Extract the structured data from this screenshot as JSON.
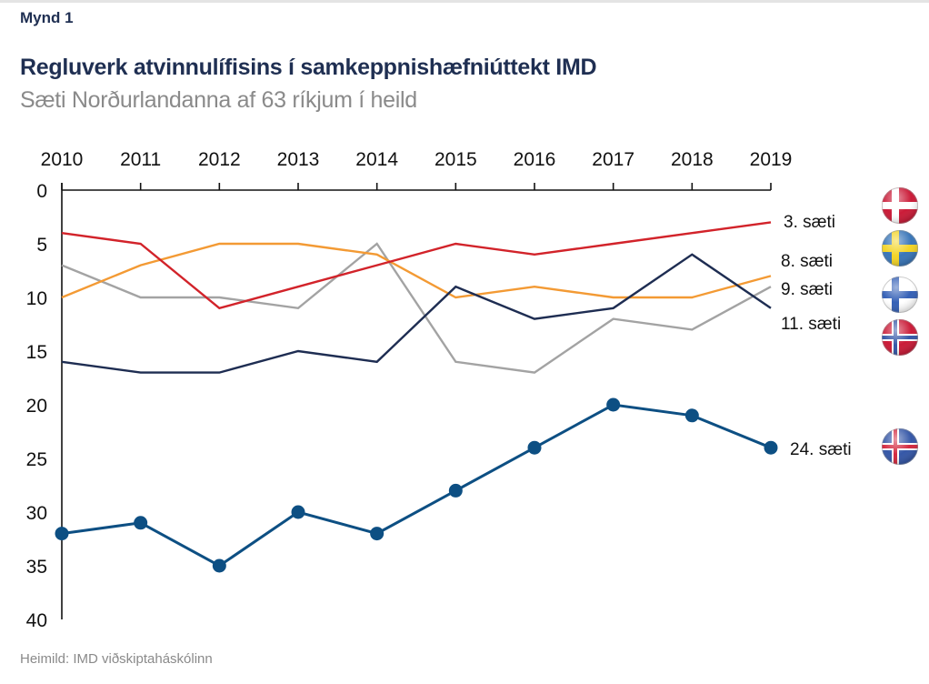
{
  "figure_label": "Mynd 1",
  "source": "Heimild: IMD viðskiptaháskólinn",
  "chart_data": {
    "type": "line",
    "title": "Regluverk atvinnulífisins í samkeppnishæfniúttekt IMD",
    "subtitle": "Sæti Norðurlandanna af 63 ríkjum í heild",
    "xlabel": "",
    "ylabel": "",
    "x": [
      "2010",
      "2011",
      "2012",
      "2013",
      "2014",
      "2015",
      "2016",
      "2017",
      "2018",
      "2019"
    ],
    "x_axis_position": "top",
    "y_inverted": true,
    "ylim": [
      0,
      40
    ],
    "yticks": [
      0,
      5,
      10,
      15,
      20,
      25,
      30,
      35,
      40
    ],
    "grid": false,
    "series": [
      {
        "name": "Danmörk",
        "flag": "denmark-flag-icon",
        "color": "#d2232a",
        "markers": false,
        "end_label": "3. sæti",
        "values": [
          4,
          5,
          11,
          9,
          7,
          5,
          6,
          5,
          4,
          3
        ]
      },
      {
        "name": "Svíþjóð",
        "flag": "sweden-flag-icon",
        "color": "#f39a34",
        "markers": false,
        "end_label": "8. sæti",
        "values": [
          10,
          7,
          5,
          5,
          6,
          10,
          9,
          10,
          10,
          8
        ]
      },
      {
        "name": "Finnland",
        "flag": "finland-flag-icon",
        "color": "#a3a3a3",
        "markers": false,
        "end_label": "9. sæti",
        "values": [
          7,
          10,
          10,
          11,
          5,
          16,
          17,
          12,
          13,
          9
        ]
      },
      {
        "name": "Noregur",
        "flag": "norway-flag-icon",
        "color": "#1e2d52",
        "markers": false,
        "end_label": "11. sæti",
        "values": [
          16,
          17,
          17,
          15,
          16,
          9,
          12,
          11,
          6,
          11
        ]
      },
      {
        "name": "Ísland",
        "flag": "iceland-flag-icon",
        "color": "#0d4f83",
        "markers": true,
        "end_label": "24. sæti",
        "values": [
          32,
          31,
          35,
          30,
          32,
          28,
          24,
          20,
          21,
          24
        ]
      }
    ]
  }
}
